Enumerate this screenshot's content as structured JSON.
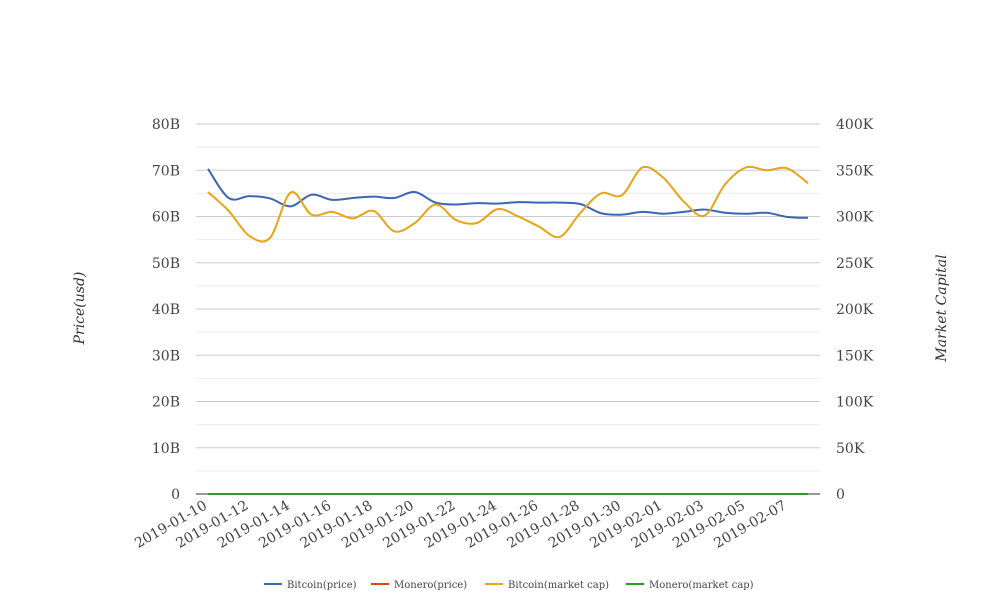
{
  "chart_data": {
    "type": "line",
    "x": [
      "2019-01-10",
      "2019-01-11",
      "2019-01-12",
      "2019-01-13",
      "2019-01-14",
      "2019-01-15",
      "2019-01-16",
      "2019-01-17",
      "2019-01-18",
      "2019-01-19",
      "2019-01-20",
      "2019-01-21",
      "2019-01-22",
      "2019-01-23",
      "2019-01-24",
      "2019-01-25",
      "2019-01-26",
      "2019-01-27",
      "2019-01-28",
      "2019-01-29",
      "2019-01-30",
      "2019-01-31",
      "2019-02-01",
      "2019-02-02",
      "2019-02-03",
      "2019-02-04",
      "2019-02-05",
      "2019-02-06",
      "2019-02-07",
      "2019-02-08"
    ],
    "x_ticks": [
      "2019-01-10",
      "2019-01-12",
      "2019-01-14",
      "2019-01-16",
      "2019-01-18",
      "2019-01-20",
      "2019-01-22",
      "2019-01-24",
      "2019-01-26",
      "2019-01-28",
      "2019-01-30",
      "2019-02-01",
      "2019-02-03",
      "2019-02-05",
      "2019-02-07"
    ],
    "y_left": {
      "label": "Price(usd)",
      "ylim": [
        0,
        80000000000
      ],
      "ticks": [
        0,
        10000000000,
        20000000000,
        30000000000,
        40000000000,
        50000000000,
        60000000000,
        70000000000,
        80000000000
      ],
      "tick_labels": [
        "0",
        "10B",
        "20B",
        "30B",
        "40B",
        "50B",
        "60B",
        "70B",
        "80B"
      ]
    },
    "y_right": {
      "label": "Market Capital",
      "ylim": [
        0,
        400000
      ],
      "ticks": [
        0,
        50000,
        100000,
        150000,
        200000,
        250000,
        300000,
        350000,
        400000
      ],
      "tick_labels": [
        "0",
        "50K",
        "100K",
        "150K",
        "200K",
        "250K",
        "300K",
        "350K",
        "400K"
      ]
    },
    "grid": true,
    "legend_position": "bottom",
    "series": [
      {
        "name": "Bitcoin(price)",
        "axis": "left",
        "color": "#3a67b5",
        "values": [
          70300000000,
          64000000000,
          64400000000,
          63900000000,
          62200000000,
          64700000000,
          63600000000,
          64000000000,
          64300000000,
          64000000000,
          65300000000,
          63000000000,
          62600000000,
          62900000000,
          62800000000,
          63100000000,
          63000000000,
          63000000000,
          62700000000,
          60700000000,
          60400000000,
          61000000000,
          60600000000,
          61000000000,
          61500000000,
          60800000000,
          60600000000,
          60800000000,
          59900000000,
          59700000000
        ]
      },
      {
        "name": "Monero(price)",
        "axis": "left",
        "color": "#d9480f",
        "values": [
          0,
          0,
          0,
          0,
          0,
          0,
          0,
          0,
          0,
          0,
          0,
          0,
          0,
          0,
          0,
          0,
          0,
          0,
          0,
          0,
          0,
          0,
          0,
          0,
          0,
          0,
          0,
          0,
          0,
          0
        ]
      },
      {
        "name": "Bitcoin(market cap)",
        "axis": "right",
        "color": "#e8a317",
        "values": [
          326500,
          306000,
          279000,
          277000,
          326000,
          302000,
          305000,
          298000,
          306000,
          284000,
          293000,
          313000,
          296000,
          293000,
          308000,
          300000,
          289000,
          278000,
          304000,
          325000,
          323000,
          353000,
          342000,
          316000,
          301000,
          335000,
          353000,
          350000,
          352000,
          336000
        ]
      },
      {
        "name": "Monero(market cap)",
        "axis": "right",
        "color": "#2a9d2a",
        "values": [
          0,
          0,
          0,
          0,
          0,
          0,
          0,
          0,
          0,
          0,
          0,
          0,
          0,
          0,
          0,
          0,
          0,
          0,
          0,
          0,
          0,
          0,
          0,
          0,
          0,
          0,
          0,
          0,
          0,
          0
        ]
      }
    ]
  }
}
